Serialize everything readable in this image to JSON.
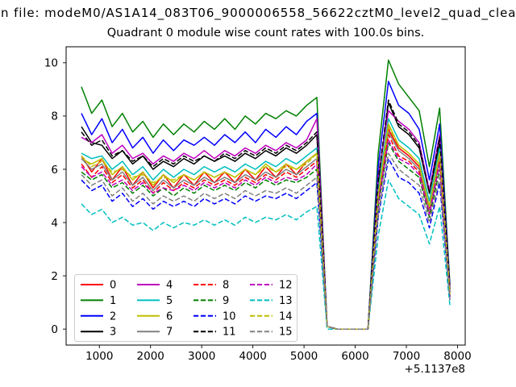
{
  "figure": {
    "suptitle": "n file: modeM0/AS1A14_083T06_9000006558_56622cztM0_level2_quad_clean",
    "title": "Quadrant 0 module wise count rates with 100.0s bins.",
    "offset_text": "+5.1137e8",
    "background": "#ffffff"
  },
  "chart_data": {
    "type": "line",
    "title": "Quadrant 0 module wise count rates with 100.0s bins.",
    "xlabel": "",
    "ylabel": "",
    "x_axis_offset": "+5.1137e8",
    "xlim": [
      350,
      8150
    ],
    "ylim": [
      -0.6,
      10.6
    ],
    "xticks": [
      1000,
      2000,
      3000,
      4000,
      5000,
      6000,
      7000,
      8000
    ],
    "yticks": [
      0,
      2,
      4,
      6,
      8,
      10
    ],
    "grid": false,
    "legend_position": "lower left",
    "legend_columns": 4,
    "frame_color": "#000000",
    "legend_border_color": "#cccccc",
    "x": [
      650,
      850,
      1050,
      1250,
      1450,
      1650,
      1850,
      2050,
      2250,
      2450,
      2650,
      2850,
      3050,
      3250,
      3450,
      3650,
      3850,
      4050,
      4250,
      4450,
      4650,
      4850,
      5050,
      5250,
      5450,
      5650,
      5850,
      6050,
      6250,
      6450,
      6650,
      6850,
      7050,
      7250,
      7450,
      7650,
      7850
    ],
    "series": [
      {
        "name": "0",
        "color": "#ff0000",
        "linestyle": "solid",
        "values": [
          6.5,
          5.9,
          6.4,
          5.6,
          6.1,
          5.4,
          5.9,
          5.3,
          5.8,
          5.3,
          5.8,
          5.4,
          5.9,
          5.5,
          5.9,
          5.5,
          6.0,
          5.6,
          6.1,
          5.7,
          6.2,
          5.8,
          6.3,
          6.6,
          0.1,
          0,
          0,
          0,
          0,
          4.9,
          7.5,
          6.8,
          6.5,
          6.1,
          4.5,
          6.5,
          1.3
        ]
      },
      {
        "name": "1",
        "color": "#008000",
        "linestyle": "solid",
        "values": [
          9.1,
          8.1,
          8.6,
          7.6,
          8.1,
          7.4,
          7.8,
          7.2,
          7.7,
          7.3,
          7.7,
          7.4,
          7.8,
          7.5,
          7.9,
          7.5,
          8.0,
          7.7,
          8.1,
          7.9,
          8.2,
          8.0,
          8.4,
          8.7,
          0.1,
          0,
          0,
          0,
          0,
          6.6,
          10.1,
          9.2,
          8.7,
          8.2,
          6.1,
          8.3,
          1.7
        ]
      },
      {
        "name": "2",
        "color": "#0000ff",
        "linestyle": "solid",
        "values": [
          8.1,
          7.3,
          7.9,
          7.0,
          7.5,
          6.8,
          7.2,
          6.6,
          7.1,
          6.7,
          7.1,
          6.9,
          7.2,
          6.9,
          7.3,
          7.0,
          7.4,
          7.0,
          7.5,
          7.2,
          7.6,
          7.3,
          7.8,
          8.1,
          0.1,
          0,
          0,
          0,
          0,
          6.1,
          9.3,
          8.4,
          8.1,
          7.5,
          5.6,
          7.7,
          1.6
        ]
      },
      {
        "name": "3",
        "color": "#000000",
        "linestyle": "solid",
        "values": [
          7.6,
          7.0,
          6.9,
          6.4,
          6.7,
          6.2,
          6.5,
          6.0,
          6.3,
          6.1,
          6.4,
          6.2,
          6.5,
          6.3,
          6.5,
          6.3,
          6.6,
          6.4,
          6.7,
          6.5,
          6.8,
          6.6,
          6.9,
          7.3,
          0.1,
          0,
          0,
          0,
          0,
          5.5,
          8.5,
          7.6,
          7.3,
          6.8,
          5.1,
          7.0,
          1.4
        ]
      },
      {
        "name": "4",
        "color": "#bf00bf",
        "linestyle": "solid",
        "values": [
          7.2,
          7.0,
          7.3,
          6.6,
          6.9,
          6.4,
          6.6,
          6.2,
          6.5,
          6.3,
          6.6,
          6.4,
          6.7,
          6.4,
          6.7,
          6.5,
          6.8,
          6.6,
          6.9,
          6.7,
          7.0,
          6.8,
          7.1,
          7.9,
          0.1,
          0,
          0,
          0,
          0,
          5.7,
          8.2,
          7.8,
          7.5,
          7.0,
          5.2,
          7.3,
          1.5
        ]
      },
      {
        "name": "5",
        "color": "#00bfbf",
        "linestyle": "solid",
        "values": [
          6.6,
          6.4,
          6.5,
          6.0,
          6.3,
          5.8,
          6.1,
          5.6,
          6.0,
          5.7,
          6.0,
          5.8,
          6.1,
          5.9,
          6.1,
          5.9,
          6.2,
          6.0,
          6.3,
          6.1,
          6.4,
          6.2,
          6.5,
          6.8,
          0.1,
          0,
          0,
          0,
          0,
          5.2,
          7.9,
          7.1,
          6.8,
          6.4,
          4.8,
          6.8,
          1.3
        ]
      },
      {
        "name": "6",
        "color": "#bfbf00",
        "linestyle": "solid",
        "values": [
          6.4,
          6.2,
          6.4,
          5.8,
          6.1,
          5.6,
          5.9,
          5.4,
          5.8,
          5.5,
          5.8,
          5.6,
          5.9,
          5.7,
          5.9,
          5.7,
          6.0,
          5.8,
          6.2,
          5.9,
          6.2,
          6.0,
          6.3,
          6.6,
          0.1,
          0,
          0,
          0,
          0,
          5.0,
          7.7,
          6.9,
          6.6,
          6.2,
          4.6,
          6.6,
          1.3
        ]
      },
      {
        "name": "7",
        "color": "#808080",
        "linestyle": "solid",
        "values": [
          6.4,
          6.0,
          6.2,
          5.6,
          5.9,
          5.4,
          5.7,
          5.2,
          5.6,
          5.3,
          5.6,
          5.4,
          5.7,
          5.5,
          5.7,
          5.5,
          5.8,
          5.6,
          5.9,
          5.7,
          6.0,
          5.8,
          6.1,
          6.4,
          0.1,
          0,
          0,
          0,
          0,
          4.8,
          7.4,
          6.7,
          6.4,
          6.0,
          4.4,
          6.4,
          1.3
        ]
      },
      {
        "name": "8",
        "color": "#ff0000",
        "linestyle": "dashed",
        "values": [
          6.2,
          5.7,
          6.1,
          5.5,
          5.8,
          5.3,
          5.6,
          5.1,
          5.5,
          5.2,
          5.5,
          5.3,
          5.6,
          5.4,
          5.6,
          5.4,
          5.7,
          5.5,
          5.8,
          5.6,
          5.9,
          5.7,
          6.0,
          6.3,
          0.1,
          0,
          0,
          0,
          0,
          4.7,
          7.3,
          6.5,
          6.3,
          5.9,
          4.3,
          6.3,
          1.2
        ]
      },
      {
        "name": "9",
        "color": "#008000",
        "linestyle": "dashed",
        "values": [
          5.9,
          5.6,
          5.8,
          5.3,
          5.5,
          5.1,
          5.4,
          5.0,
          5.3,
          5.0,
          5.3,
          5.1,
          5.4,
          5.2,
          5.4,
          5.2,
          5.5,
          5.3,
          5.6,
          5.4,
          5.6,
          5.5,
          5.7,
          6.0,
          0.1,
          0,
          0,
          0,
          0,
          4.6,
          7.0,
          6.3,
          6.0,
          5.7,
          4.2,
          6.0,
          1.2
        ]
      },
      {
        "name": "10",
        "color": "#0000ff",
        "linestyle": "dashed",
        "values": [
          5.6,
          5.2,
          5.4,
          4.8,
          5.1,
          4.6,
          4.9,
          4.5,
          4.8,
          4.6,
          4.8,
          4.6,
          4.9,
          4.7,
          4.9,
          4.7,
          5.0,
          4.8,
          5.0,
          4.9,
          5.1,
          4.9,
          5.2,
          5.5,
          0.1,
          0,
          0,
          0,
          0,
          4.2,
          6.4,
          5.7,
          5.5,
          5.1,
          3.8,
          5.5,
          1.1
        ]
      },
      {
        "name": "11",
        "color": "#000000",
        "linestyle": "dashed",
        "values": [
          7.4,
          6.9,
          7.1,
          6.5,
          6.7,
          6.3,
          6.5,
          6.1,
          6.4,
          6.2,
          6.5,
          6.3,
          6.5,
          6.3,
          6.6,
          6.4,
          6.7,
          6.5,
          6.8,
          6.6,
          6.9,
          6.7,
          7.0,
          7.4,
          0.1,
          0,
          0,
          0,
          0,
          5.6,
          8.6,
          7.7,
          7.4,
          6.9,
          5.1,
          7.2,
          1.5
        ]
      },
      {
        "name": "12",
        "color": "#bf00bf",
        "linestyle": "dashed",
        "values": [
          6.1,
          5.7,
          5.9,
          5.4,
          5.6,
          5.2,
          5.5,
          5.1,
          5.3,
          5.2,
          5.4,
          5.2,
          5.5,
          5.3,
          5.5,
          5.3,
          5.6,
          5.4,
          5.7,
          5.5,
          5.7,
          5.6,
          5.8,
          6.2,
          0.1,
          0,
          0,
          0,
          0,
          4.7,
          7.1,
          6.4,
          6.2,
          5.8,
          4.3,
          6.2,
          1.2
        ]
      },
      {
        "name": "13",
        "color": "#00bfbf",
        "linestyle": "dashed",
        "values": [
          4.7,
          4.3,
          4.5,
          4.0,
          4.2,
          3.9,
          4.0,
          3.7,
          4.0,
          3.8,
          4.0,
          3.9,
          4.1,
          3.9,
          4.1,
          3.9,
          4.2,
          4.0,
          4.2,
          4.1,
          4.3,
          4.1,
          4.4,
          4.6,
          0.0,
          0,
          0,
          0,
          0,
          3.5,
          5.6,
          4.9,
          4.6,
          4.3,
          3.2,
          4.6,
          0.9
        ]
      },
      {
        "name": "14",
        "color": "#bfbf00",
        "linestyle": "dashed",
        "values": [
          6.5,
          6.1,
          6.3,
          5.9,
          6.0,
          5.7,
          5.8,
          5.5,
          5.7,
          5.6,
          5.8,
          5.6,
          5.9,
          5.7,
          5.9,
          5.7,
          6.0,
          5.8,
          6.1,
          5.9,
          6.1,
          6.0,
          6.2,
          6.6,
          0.1,
          0,
          0,
          0,
          0,
          5.0,
          7.6,
          6.9,
          6.6,
          6.2,
          4.6,
          6.6,
          1.3
        ]
      },
      {
        "name": "15",
        "color": "#808080",
        "linestyle": "dashed",
        "values": [
          5.8,
          5.4,
          5.6,
          5.0,
          5.3,
          4.8,
          5.1,
          4.7,
          5.0,
          4.8,
          5.0,
          4.8,
          5.1,
          4.9,
          5.1,
          4.9,
          5.2,
          5.0,
          5.2,
          5.1,
          5.3,
          5.1,
          5.4,
          5.7,
          0.1,
          0,
          0,
          0,
          0,
          4.3,
          6.6,
          6.0,
          5.7,
          5.4,
          4.0,
          5.7,
          1.1
        ]
      }
    ]
  }
}
